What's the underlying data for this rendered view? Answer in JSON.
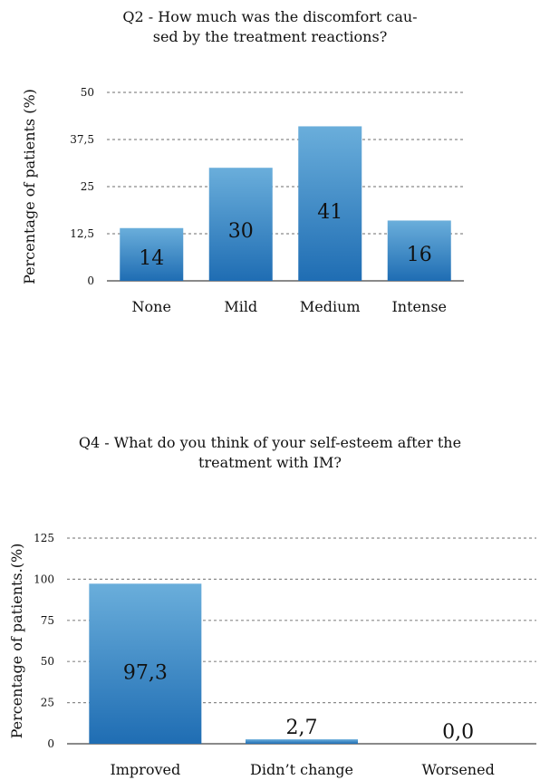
{
  "chart_data": [
    {
      "type": "bar",
      "title": "Q2 - How much was the discomfort cau-\nsed by the treatment reactions?",
      "ylabel": "Percentage of patients (%)",
      "xlabel": "",
      "categories": [
        "None",
        "Mild",
        "Medium",
        "Intense"
      ],
      "values": [
        14,
        30,
        41,
        16
      ],
      "value_labels": [
        "14",
        "30",
        "41",
        "16"
      ],
      "ylim": [
        0,
        50
      ],
      "yticks": [
        0,
        12.5,
        25,
        37.5,
        50
      ],
      "ytick_labels": [
        "0",
        "12,5",
        "25",
        "37,5",
        "50"
      ],
      "grid": true,
      "bar_color_top": "#6aaedb",
      "bar_color_bottom": "#1f6db3"
    },
    {
      "type": "bar",
      "title": "Q4 - What do you think of your self-esteem after the\ntreatment with IM?",
      "ylabel": "Percentage of patients.(%)",
      "xlabel": "",
      "categories": [
        "Improved",
        "Didn’t change",
        "Worsened"
      ],
      "values": [
        97.3,
        2.7,
        0.0
      ],
      "value_labels": [
        "97,3",
        "2,7",
        "0,0"
      ],
      "ylim": [
        0,
        125
      ],
      "yticks": [
        0,
        25,
        50,
        75,
        100,
        125
      ],
      "ytick_labels": [
        "0",
        "25",
        "50",
        "75",
        "100",
        "125"
      ],
      "grid": true,
      "bar_color_top": "#6aaedb",
      "bar_color_bottom": "#1f6db3"
    }
  ]
}
